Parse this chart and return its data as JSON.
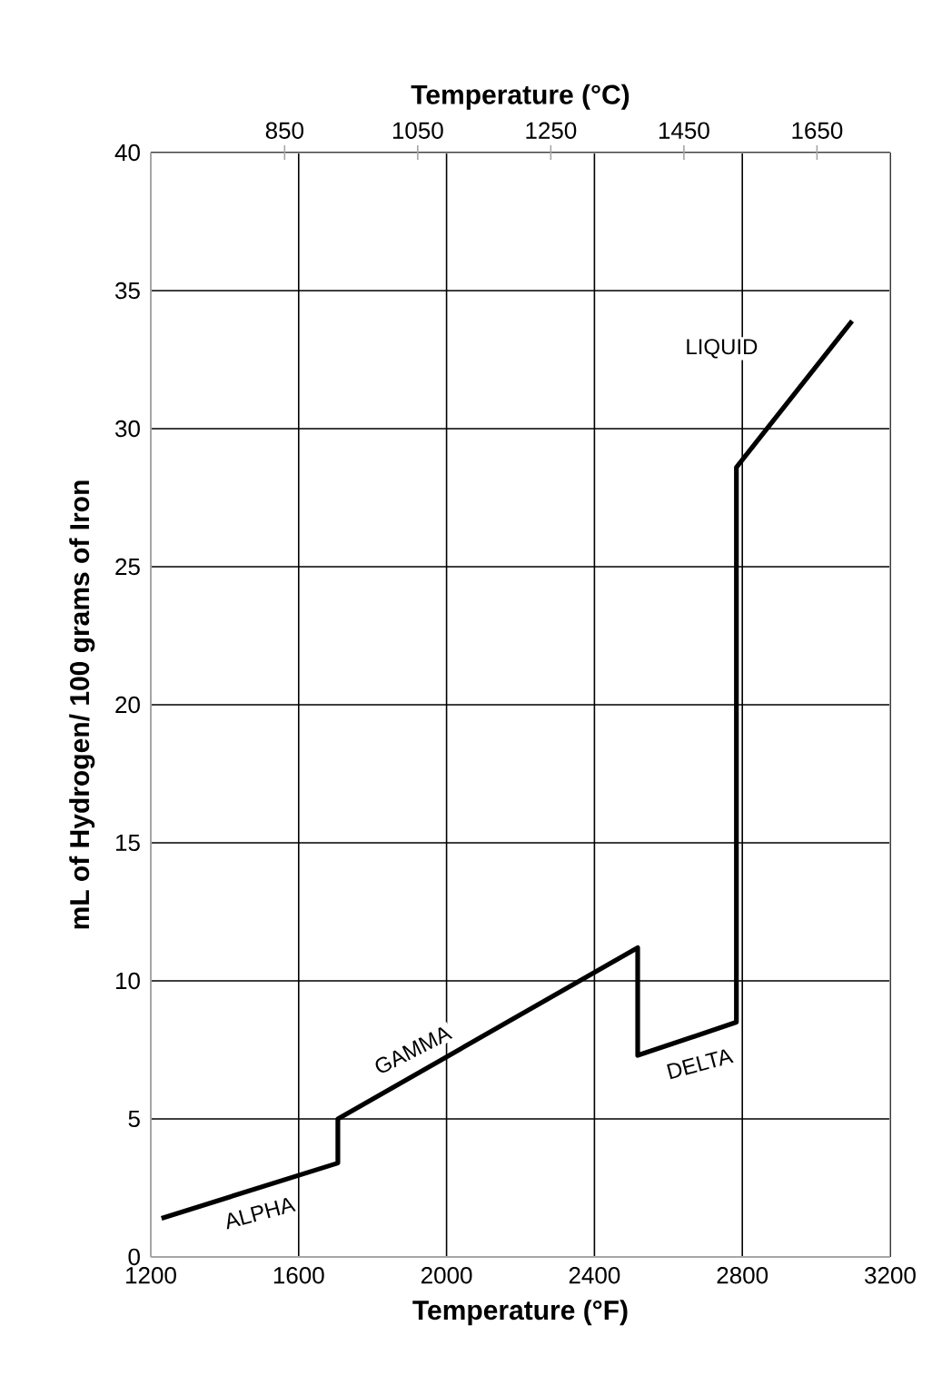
{
  "chart_data": {
    "type": "line",
    "xlabel": "Temperature (°F)",
    "ylabel": "mL of Hydrogen/ 100 grams of Iron",
    "x2label": "Temperature (°C)",
    "x": [
      1229,
      1706,
      1706,
      2517,
      2517,
      2784,
      2784,
      3097
    ],
    "series": [
      {
        "color": "#000000",
        "values": [
          1.4,
          3.4,
          5.0,
          11.2,
          7.3,
          8.5,
          28.6,
          33.9
        ]
      }
    ],
    "xlim": [
      1200,
      3200
    ],
    "xticks": [
      1200,
      1600,
      2000,
      2400,
      2800,
      3200
    ],
    "ylim": [
      0,
      40
    ],
    "yticks": [
      0,
      5,
      10,
      15,
      20,
      25,
      30,
      35,
      40
    ],
    "x2lim": [
      648.9,
      1760
    ],
    "x2ticks": [
      850,
      1050,
      1250,
      1450,
      1650
    ],
    "grid": true,
    "marker": "none",
    "annotations": [
      "ALPHA",
      "GAMMA",
      "DELTA",
      "LIQUID"
    ]
  }
}
